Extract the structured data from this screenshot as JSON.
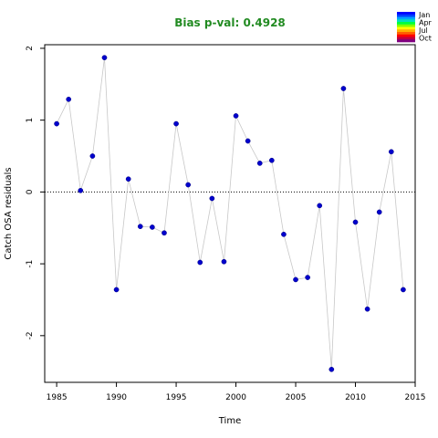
{
  "chart_data": {
    "type": "scatter",
    "title": "Bias p-val: 0.4928",
    "xlabel": "Time",
    "ylabel": "Catch OSA residuals",
    "xlim": [
      1984,
      2015
    ],
    "ylim": [
      -2.65,
      2.05
    ],
    "xticks": [
      1985,
      1990,
      1995,
      2000,
      2005,
      2010,
      2015
    ],
    "yticks": [
      -2,
      -1,
      0,
      1,
      2
    ],
    "reference_line": 0,
    "colors": {
      "title": "#228B22",
      "points": "#0000CD",
      "line": "#C8C8C8"
    },
    "x": [
      1985,
      1986,
      1987,
      1988,
      1989,
      1990,
      1991,
      1992,
      1993,
      1994,
      1995,
      1996,
      1997,
      1998,
      1999,
      2000,
      2001,
      2002,
      2003,
      2004,
      2005,
      2006,
      2007,
      2008,
      2009,
      2010,
      2011,
      2012,
      2013,
      2014
    ],
    "y": [
      0.95,
      1.29,
      0.02,
      0.5,
      1.87,
      -1.36,
      0.18,
      -0.48,
      -0.49,
      -0.57,
      0.95,
      0.1,
      -0.98,
      -0.09,
      -0.97,
      1.06,
      0.71,
      0.4,
      0.44,
      -0.59,
      -1.22,
      -1.19,
      -0.19,
      -2.47,
      1.44,
      -0.42,
      -1.63,
      -0.28,
      0.56,
      -1.36
    ],
    "legend": {
      "placement": "top-right",
      "labels": [
        "Jan",
        "Apr",
        "Jul",
        "Oct"
      ],
      "colors": [
        "#0000FF",
        "#0040FF",
        "#00A0FF",
        "#00E0C0",
        "#00FF40",
        "#80FF00",
        "#FFFF00",
        "#FFB000",
        "#FF6000",
        "#FF0000",
        "#C00040",
        "#800080"
      ]
    }
  }
}
